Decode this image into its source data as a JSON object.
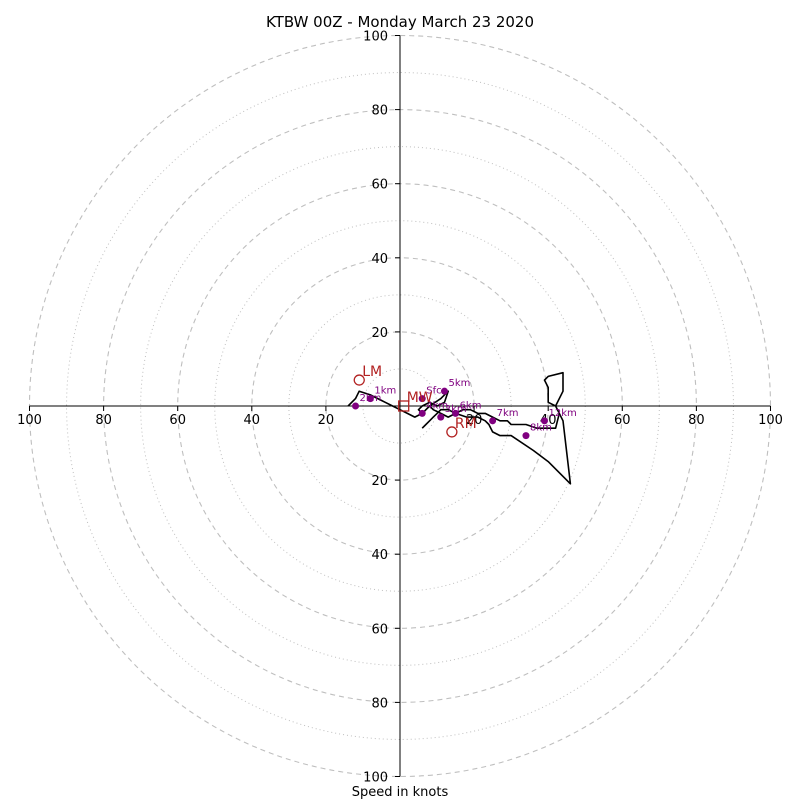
{
  "chart_data": {
    "type": "line",
    "title": "KTBW 00Z - Monday March 23 2020",
    "xlabel": "Speed in knots",
    "ylabel": "",
    "xlim": [
      -100,
      100
    ],
    "ylim": [
      -100,
      100
    ],
    "rings_major": [
      20,
      40,
      60,
      80,
      100
    ],
    "rings_minor": [
      10,
      30,
      50,
      70,
      90
    ],
    "tick_labels": [
      "100",
      "80",
      "60",
      "40",
      "20",
      "20",
      "40",
      "60",
      "80",
      "100"
    ],
    "hodograph": {
      "u": [
        -14,
        -12,
        -11,
        -8,
        -6,
        -4,
        -2,
        0,
        2,
        4,
        6,
        8,
        11,
        13,
        12,
        10,
        8,
        6,
        5,
        6,
        7,
        8,
        9,
        11,
        13,
        15,
        17,
        19,
        21,
        23,
        25,
        27,
        29,
        30,
        31,
        34,
        37,
        40,
        42,
        43,
        42,
        40,
        40,
        39,
        40,
        44,
        44,
        42,
        44,
        46,
        43,
        40,
        36,
        30,
        27,
        25,
        24,
        23,
        21,
        18,
        15,
        13,
        11,
        10,
        9,
        8,
        7,
        6
      ],
      "v": [
        0,
        2,
        4,
        3,
        2,
        1,
        0,
        -1,
        -2,
        -3,
        -2,
        0,
        2,
        4,
        1,
        0,
        1,
        0,
        -1,
        -2,
        -1,
        0,
        -1,
        -2,
        -3,
        -2,
        -1,
        -1,
        -2,
        -2,
        -3,
        -4,
        -4,
        -5,
        -5,
        -5,
        -6,
        -6,
        -6,
        -2,
        0,
        1,
        5,
        7,
        8,
        9,
        4,
        0,
        -4,
        -21,
        -18,
        -15,
        -12,
        -8,
        -8,
        -7,
        -5,
        -4,
        -3,
        -3,
        -2,
        -1,
        -1,
        -2,
        -3,
        -4,
        -5,
        -6
      ]
    },
    "height_markers": [
      {
        "label": "Sfc",
        "u": 6,
        "v": 2
      },
      {
        "label": "1km",
        "u": -8,
        "v": 2
      },
      {
        "label": "2km",
        "u": -12,
        "v": 0
      },
      {
        "label": "3km",
        "u": 11,
        "v": -3
      },
      {
        "label": "4km",
        "u": 6,
        "v": -2
      },
      {
        "label": "5km",
        "u": 12,
        "v": 4
      },
      {
        "label": "6km",
        "u": 15,
        "v": -2
      },
      {
        "label": "7km",
        "u": 25,
        "v": -4
      },
      {
        "label": "8km",
        "u": 34,
        "v": -8
      },
      {
        "label": "12km",
        "u": 39,
        "v": -4
      }
    ],
    "storm_motions": [
      {
        "label": "LM",
        "u": -11,
        "v": 7,
        "marker": "circle"
      },
      {
        "label": "MW",
        "u": 1,
        "v": 0,
        "marker": "square"
      },
      {
        "label": "RM",
        "u": 14,
        "v": -7,
        "marker": "circle"
      }
    ],
    "colors": {
      "line": "#000000",
      "marker": "#800080",
      "marker_label": "#7f007f",
      "storm_motion": "#b22222",
      "grid": "#bfbfbf"
    }
  }
}
